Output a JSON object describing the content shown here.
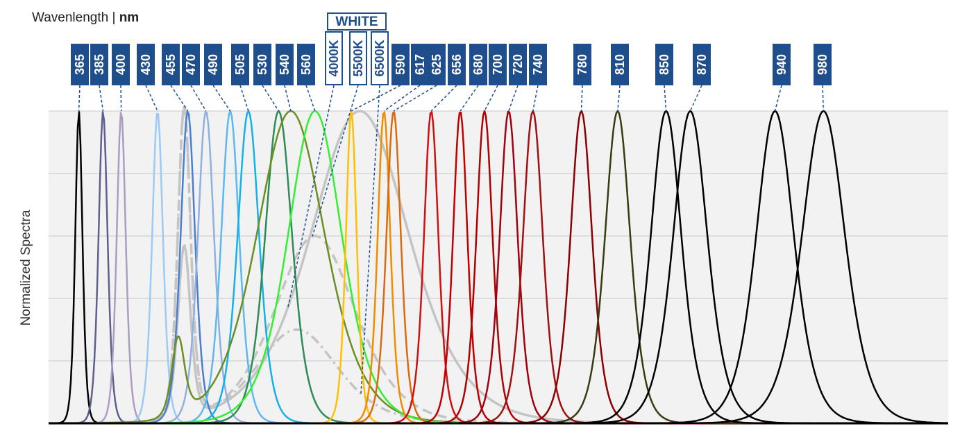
{
  "chart_data": {
    "type": "spectra",
    "title": "Wavenlength |",
    "title_unit": "nm",
    "y_label": "Normalized Spectra",
    "group_label": "WHITE",
    "xlim": [
      340,
      1083
    ],
    "ylim": [
      0,
      1
    ],
    "yticks": [
      0,
      0.2,
      0.4,
      0.6,
      0.8,
      1
    ],
    "grid": true,
    "series": [
      {
        "name": "365",
        "color": "#000000",
        "components": [
          [
            365,
            4,
            1
          ]
        ]
      },
      {
        "name": "385",
        "color": "#5f5f8f",
        "components": [
          [
            385,
            5,
            1
          ]
        ]
      },
      {
        "name": "400",
        "color": "#ab9cc4",
        "components": [
          [
            400,
            5,
            1
          ]
        ]
      },
      {
        "name": "430",
        "color": "#9ccaf2",
        "components": [
          [
            430,
            6,
            1
          ]
        ]
      },
      {
        "name": "455",
        "color": "#4a7fd0",
        "components": [
          [
            455,
            8,
            1
          ]
        ]
      },
      {
        "name": "470",
        "color": "#8fb0e0",
        "components": [
          [
            470,
            9,
            1
          ]
        ]
      },
      {
        "name": "490",
        "color": "#5cb8ee",
        "components": [
          [
            490,
            10,
            1
          ]
        ]
      },
      {
        "name": "505",
        "color": "#14b0e8",
        "components": [
          [
            505,
            12,
            1
          ]
        ]
      },
      {
        "name": "530",
        "color": "#2e8b57",
        "components": [
          [
            530,
            15,
            1
          ]
        ]
      },
      {
        "name": "540",
        "color": "#6b8e23",
        "components": [
          [
            540,
            38,
            1
          ],
          [
            447,
            7,
            0.25
          ]
        ]
      },
      {
        "name": "560",
        "color": "#33ee33",
        "components": [
          [
            560,
            30,
            1
          ]
        ]
      },
      {
        "name": "4000K",
        "color": "#c4c4c4",
        "white": true,
        "dash": "solid",
        "components": [
          [
            452,
            7,
            0.55
          ],
          [
            597,
            55,
            1
          ]
        ]
      },
      {
        "name": "5500K",
        "color": "#c4c4c4",
        "white": true,
        "dash": "dashed",
        "components": [
          [
            452,
            7,
            1
          ],
          [
            560,
            45,
            0.6
          ]
        ]
      },
      {
        "name": "6500K",
        "color": "#c4c4c4",
        "white": true,
        "dash": "dashdot",
        "components": [
          [
            452,
            7,
            1
          ],
          [
            545,
            45,
            0.3
          ]
        ]
      },
      {
        "name": "590",
        "color": "#ffc000",
        "components": [
          [
            590,
            6,
            1
          ]
        ]
      },
      {
        "name": "617",
        "color": "#f08c00",
        "components": [
          [
            617,
            7,
            1
          ]
        ]
      },
      {
        "name": "625",
        "color": "#d86a10",
        "components": [
          [
            625,
            8,
            1
          ]
        ]
      },
      {
        "name": "656",
        "color": "#d01010",
        "components": [
          [
            656,
            8,
            1
          ]
        ]
      },
      {
        "name": "680",
        "color": "#c00000",
        "components": [
          [
            680,
            8,
            1
          ]
        ]
      },
      {
        "name": "700",
        "color": "#b00000",
        "components": [
          [
            700,
            9,
            1
          ]
        ]
      },
      {
        "name": "720",
        "color": "#a00010",
        "components": [
          [
            720,
            10,
            1
          ]
        ]
      },
      {
        "name": "740",
        "color": "#a01010",
        "components": [
          [
            740,
            11,
            1
          ]
        ]
      },
      {
        "name": "780",
        "color": "#8b0000",
        "components": [
          [
            780,
            12,
            1
          ]
        ]
      },
      {
        "name": "810",
        "color": "#3a3a10",
        "components": [
          [
            810,
            14,
            1
          ]
        ]
      },
      {
        "name": "850",
        "color": "#000000",
        "components": [
          [
            850,
            17,
            1
          ]
        ]
      },
      {
        "name": "870",
        "color": "#000000",
        "components": [
          [
            870,
            19,
            1
          ]
        ]
      },
      {
        "name": "940",
        "color": "#000000",
        "components": [
          [
            940,
            21,
            1
          ]
        ]
      },
      {
        "name": "980",
        "color": "#000000",
        "components": [
          [
            980,
            24,
            1
          ]
        ]
      }
    ]
  }
}
